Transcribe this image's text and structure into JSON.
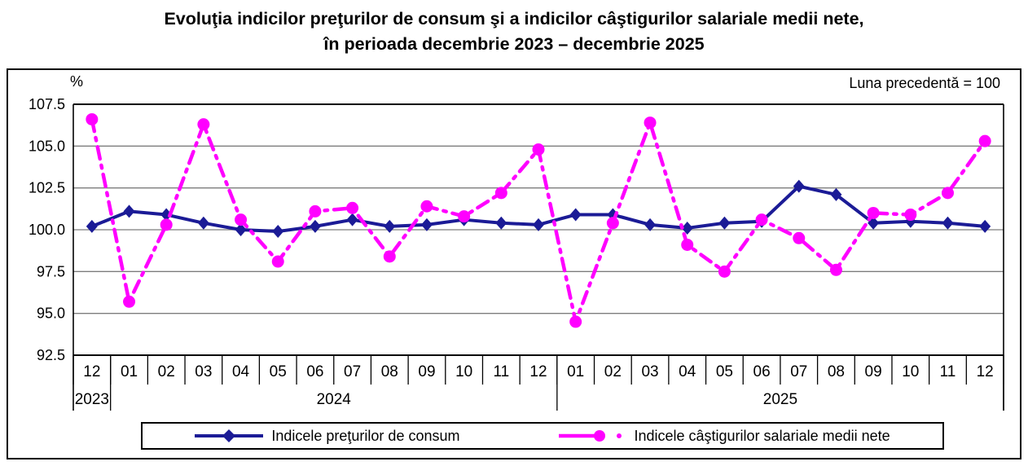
{
  "title": {
    "line1": "Evoluţia indicilor preţurilor de consum şi a indicilor câştigurilor salariale medii nete,",
    "line2": "în perioada decembrie 2023 – decembrie 2025"
  },
  "annotation": "Luna precedentă = 100",
  "axes": {
    "y_unit": "%"
  },
  "chart_data": {
    "type": "line",
    "title": "Evoluţia indicilor preţurilor de consum şi a indicilor câştigurilor salariale medii nete, în perioada decembrie 2023 – decembrie 2025",
    "note": "Luna precedentă = 100",
    "ylabel": "%",
    "ylim": [
      92.5,
      107.5
    ],
    "y_ticks": [
      107.5,
      105.0,
      102.5,
      100.0,
      97.5,
      95.0,
      92.5
    ],
    "grid": "horizontal",
    "legend_position": "bottom",
    "x_labels": [
      "12",
      "01",
      "02",
      "03",
      "04",
      "05",
      "06",
      "07",
      "08",
      "09",
      "10",
      "11",
      "12",
      "01",
      "02",
      "03",
      "04",
      "05",
      "06",
      "07",
      "08",
      "09",
      "10",
      "11",
      "12"
    ],
    "year_groups": [
      {
        "label": "2023",
        "start": 0,
        "end": 0
      },
      {
        "label": "2024",
        "start": 1,
        "end": 12
      },
      {
        "label": "2025",
        "start": 13,
        "end": 24
      }
    ],
    "series": [
      {
        "name": "Indicele preţurilor de consum",
        "color": "#1B1B96",
        "marker": "diamond",
        "line_style": "solid",
        "values": [
          100.2,
          101.1,
          100.9,
          100.4,
          100.0,
          99.9,
          100.2,
          100.6,
          100.2,
          100.3,
          100.6,
          100.4,
          100.3,
          100.9,
          100.9,
          100.3,
          100.1,
          100.4,
          100.5,
          102.6,
          102.1,
          100.4,
          100.5,
          100.4,
          100.2
        ]
      },
      {
        "name": "Indicele câştigurilor salariale medii nete",
        "color": "#FF00FF",
        "marker": "circle",
        "line_style": "dash-dot",
        "values": [
          106.6,
          95.7,
          100.3,
          106.3,
          100.6,
          98.1,
          101.1,
          101.3,
          98.4,
          101.4,
          100.8,
          102.2,
          104.8,
          94.5,
          100.4,
          106.4,
          99.1,
          97.5,
          100.6,
          99.5,
          97.6,
          101.0,
          100.9,
          102.2,
          105.3
        ]
      }
    ]
  }
}
